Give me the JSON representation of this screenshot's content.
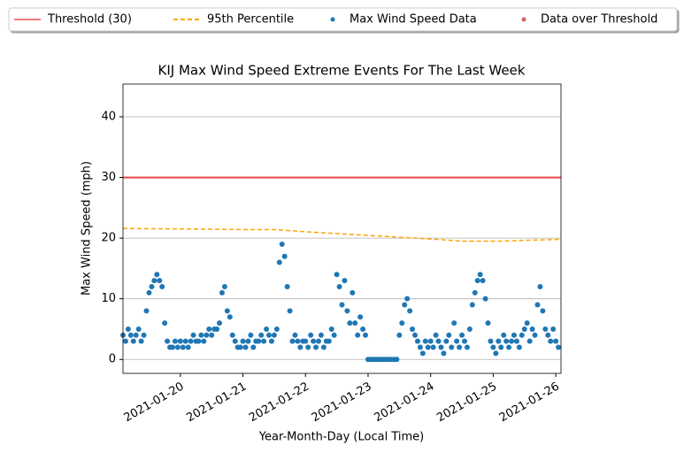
{
  "chart_data": {
    "type": "scatter",
    "title": "KIJ Max Wind Speed Extreme Events For The Last Week",
    "x_label": "Year-Month-Day (Local Time)",
    "y_label": "Max Wind Speed (mph)",
    "xlim": [
      "2021-01-19 02:00",
      "2021-01-26 02:00"
    ],
    "xticks": [
      "2021-01-20",
      "2021-01-21",
      "2021-01-22",
      "2021-01-23",
      "2021-01-24",
      "2021-01-25",
      "2021-01-26"
    ],
    "ylim": [
      -2.3,
      45.4
    ],
    "yticks": [
      0,
      10,
      20,
      30,
      40
    ],
    "grid": true,
    "legend": "top",
    "series": [
      {
        "name": "Threshold (30)",
        "type": "line",
        "color": "#e8464a",
        "x": [
          "2021-01-19 02:00",
          "2021-01-26 02:00"
        ],
        "values": [
          30,
          30
        ]
      },
      {
        "name": "95th Percentile",
        "type": "line",
        "dashed": true,
        "color": "#ffa500",
        "x": [
          "2021-01-19 02:00",
          "2021-01-20 02:00",
          "2021-01-21 02:00",
          "2021-01-21 12:00",
          "2021-01-22 02:00",
          "2021-01-23 02:00",
          "2021-01-24 02:00",
          "2021-01-24 12:00",
          "2021-01-25 02:00",
          "2021-01-26 02:00"
        ],
        "values": [
          21.6,
          21.5,
          21.4,
          21.4,
          21.0,
          20.4,
          19.8,
          19.5,
          19.5,
          19.8
        ]
      },
      {
        "name": "Max Wind Speed Data",
        "type": "scatter",
        "color": "#1f77b4",
        "x": [
          "2021-01-19 02:00",
          "2021-01-19 03:00",
          "2021-01-19 04:00",
          "2021-01-19 05:00",
          "2021-01-19 06:00",
          "2021-01-19 07:00",
          "2021-01-19 08:00",
          "2021-01-19 09:00",
          "2021-01-19 10:00",
          "2021-01-19 11:00",
          "2021-01-19 12:00",
          "2021-01-19 13:00",
          "2021-01-19 14:00",
          "2021-01-19 15:00",
          "2021-01-19 16:00",
          "2021-01-19 17:00",
          "2021-01-19 18:00",
          "2021-01-19 19:00",
          "2021-01-19 20:00",
          "2021-01-19 21:00",
          "2021-01-19 22:00",
          "2021-01-19 23:00",
          "2021-01-20 00:00",
          "2021-01-20 01:00",
          "2021-01-20 02:00",
          "2021-01-20 03:00",
          "2021-01-20 04:00",
          "2021-01-20 05:00",
          "2021-01-20 06:00",
          "2021-01-20 07:00",
          "2021-01-20 08:00",
          "2021-01-20 09:00",
          "2021-01-20 10:00",
          "2021-01-20 11:00",
          "2021-01-20 12:00",
          "2021-01-20 13:00",
          "2021-01-20 14:00",
          "2021-01-20 15:00",
          "2021-01-20 16:00",
          "2021-01-20 17:00",
          "2021-01-20 18:00",
          "2021-01-20 19:00",
          "2021-01-20 20:00",
          "2021-01-20 21:00",
          "2021-01-20 22:00",
          "2021-01-20 23:00",
          "2021-01-21 00:00",
          "2021-01-21 01:00",
          "2021-01-21 02:00",
          "2021-01-21 03:00",
          "2021-01-21 04:00",
          "2021-01-21 05:00",
          "2021-01-21 06:00",
          "2021-01-21 07:00",
          "2021-01-21 08:00",
          "2021-01-21 09:00",
          "2021-01-21 10:00",
          "2021-01-21 11:00",
          "2021-01-21 12:00",
          "2021-01-21 13:00",
          "2021-01-21 14:00",
          "2021-01-21 15:00",
          "2021-01-21 16:00",
          "2021-01-21 17:00",
          "2021-01-21 18:00",
          "2021-01-21 19:00",
          "2021-01-21 20:00",
          "2021-01-21 21:00",
          "2021-01-21 22:00",
          "2021-01-21 23:00",
          "2021-01-22 00:00",
          "2021-01-22 01:00",
          "2021-01-22 02:00",
          "2021-01-22 03:00",
          "2021-01-22 04:00",
          "2021-01-22 05:00",
          "2021-01-22 06:00",
          "2021-01-22 07:00",
          "2021-01-22 08:00",
          "2021-01-22 09:00",
          "2021-01-22 10:00",
          "2021-01-22 11:00",
          "2021-01-22 12:00",
          "2021-01-22 13:00",
          "2021-01-22 14:00",
          "2021-01-22 15:00",
          "2021-01-22 16:00",
          "2021-01-22 17:00",
          "2021-01-22 18:00",
          "2021-01-22 19:00",
          "2021-01-22 20:00",
          "2021-01-22 21:00",
          "2021-01-22 22:00",
          "2021-01-22 23:00",
          "2021-01-23 00:00",
          "2021-01-23 01:00",
          "2021-01-23 02:00",
          "2021-01-23 03:00",
          "2021-01-23 04:00",
          "2021-01-23 05:00",
          "2021-01-23 06:00",
          "2021-01-23 07:00",
          "2021-01-23 08:00",
          "2021-01-23 09:00",
          "2021-01-23 10:00",
          "2021-01-23 11:00",
          "2021-01-23 12:00",
          "2021-01-23 13:00",
          "2021-01-23 14:00",
          "2021-01-23 15:00",
          "2021-01-23 16:00",
          "2021-01-23 17:00",
          "2021-01-23 18:00",
          "2021-01-23 19:00",
          "2021-01-23 20:00",
          "2021-01-23 21:00",
          "2021-01-23 22:00",
          "2021-01-23 23:00",
          "2021-01-24 00:00",
          "2021-01-24 01:00",
          "2021-01-24 02:00",
          "2021-01-24 03:00",
          "2021-01-24 04:00",
          "2021-01-24 05:00",
          "2021-01-24 06:00",
          "2021-01-24 07:00",
          "2021-01-24 08:00",
          "2021-01-24 09:00",
          "2021-01-24 10:00",
          "2021-01-24 11:00",
          "2021-01-24 12:00",
          "2021-01-24 13:00",
          "2021-01-24 14:00",
          "2021-01-24 15:00",
          "2021-01-24 16:00",
          "2021-01-24 17:00",
          "2021-01-24 18:00",
          "2021-01-24 19:00",
          "2021-01-24 20:00",
          "2021-01-24 21:00",
          "2021-01-24 22:00",
          "2021-01-24 23:00",
          "2021-01-25 00:00",
          "2021-01-25 01:00",
          "2021-01-25 02:00",
          "2021-01-25 03:00",
          "2021-01-25 04:00",
          "2021-01-25 05:00",
          "2021-01-25 06:00",
          "2021-01-25 07:00",
          "2021-01-25 08:00",
          "2021-01-25 09:00",
          "2021-01-25 10:00",
          "2021-01-25 11:00",
          "2021-01-25 12:00",
          "2021-01-25 13:00",
          "2021-01-25 14:00",
          "2021-01-25 15:00",
          "2021-01-25 16:00",
          "2021-01-25 17:00",
          "2021-01-25 18:00",
          "2021-01-25 19:00",
          "2021-01-25 20:00",
          "2021-01-25 21:00",
          "2021-01-25 22:00",
          "2021-01-25 23:00",
          "2021-01-26 00:00",
          "2021-01-26 01:00"
        ],
        "values": [
          4,
          3,
          5,
          4,
          3,
          4,
          5,
          3,
          4,
          8,
          11,
          12,
          13,
          14,
          13,
          12,
          6,
          3,
          2,
          2,
          3,
          2,
          3,
          2,
          3,
          2,
          3,
          4,
          3,
          3,
          4,
          3,
          4,
          5,
          4,
          5,
          5,
          6,
          11,
          12,
          8,
          7,
          4,
          3,
          2,
          2,
          3,
          2,
          3,
          4,
          2,
          3,
          3,
          4,
          3,
          5,
          4,
          3,
          4,
          5,
          16,
          19,
          17,
          12,
          8,
          3,
          4,
          3,
          2,
          3,
          3,
          2,
          4,
          3,
          2,
          3,
          4,
          2,
          3,
          3,
          5,
          4,
          14,
          12,
          9,
          13,
          8,
          6,
          11,
          6,
          4,
          7,
          5,
          4,
          0,
          0,
          0,
          0,
          0,
          0,
          0,
          0,
          0,
          0,
          0,
          0,
          4,
          6,
          9,
          10,
          8,
          5,
          4,
          3,
          2,
          1,
          3,
          2,
          3,
          2,
          4,
          3,
          2,
          1,
          3,
          4,
          2,
          6,
          3,
          2,
          4,
          3,
          2,
          5,
          9,
          11,
          13,
          14,
          13,
          10,
          6,
          3,
          2,
          1,
          3,
          2,
          4,
          3,
          2,
          3,
          4,
          3,
          2,
          4,
          5,
          6,
          3,
          5,
          4,
          9,
          12,
          8,
          5,
          4,
          3,
          5,
          3,
          2
        ]
      },
      {
        "name": "Data over Threshold",
        "type": "scatter",
        "color": "#d65f5f",
        "x": [],
        "values": []
      }
    ]
  }
}
